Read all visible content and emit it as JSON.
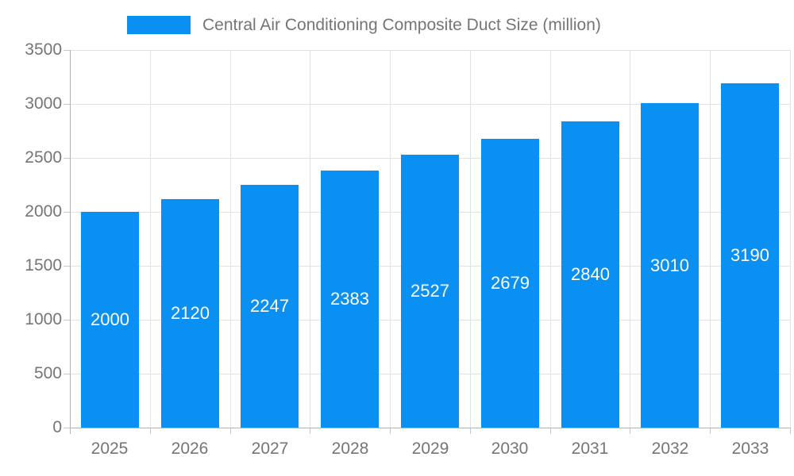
{
  "chart_data": {
    "type": "bar",
    "title": "Central Air Conditioning Composite Duct Size (million)",
    "categories": [
      "2025",
      "2026",
      "2027",
      "2028",
      "2029",
      "2030",
      "2031",
      "2032",
      "2033"
    ],
    "values": [
      2000,
      2120,
      2247,
      2383,
      2527,
      2679,
      2840,
      3010,
      3190
    ],
    "series_name": "Central Air Conditioning Composite Duct Size (million)",
    "xlabel": "",
    "ylabel": "",
    "ylim": [
      0,
      3500
    ],
    "ytick_step": 500,
    "yticks": [
      0,
      500,
      1000,
      1500,
      2000,
      2500,
      3000,
      3500
    ],
    "grid": true,
    "legend_position": "top",
    "bar_label_position": "inside-center"
  },
  "colors": {
    "bar": "#0a8ff2",
    "bar_label": "#ffffff",
    "axis_line": "#b3b3b3",
    "tick_mark": "#c6c6c6",
    "grid_line": "#e2e2e2",
    "tick_text": "#757575",
    "legend_text": "#757575",
    "background": "#ffffff"
  }
}
